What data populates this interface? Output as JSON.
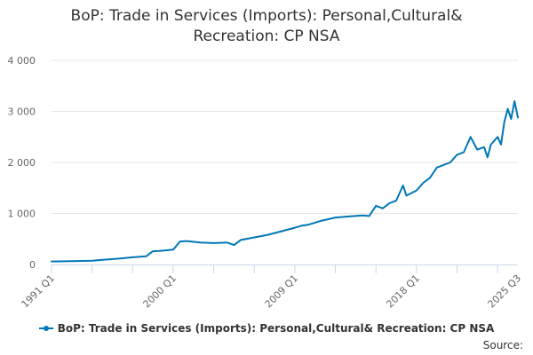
{
  "chart_data": {
    "type": "line",
    "title_lines": [
      "BoP: Trade in Services (Imports): Personal,Cultural&",
      "Recreation: CP NSA"
    ],
    "x_tick_labels": [
      "1991 Q1",
      "2000 Q1",
      "2009 Q1",
      "2018 Q1",
      "2025 Q3"
    ],
    "y_tick_labels": [
      "0",
      "1 000",
      "2 000",
      "3 000",
      "4 000"
    ],
    "ylim": [
      0,
      4000
    ],
    "grid": true,
    "legend_position": "bottom",
    "x_start": "1991 Q1",
    "series": [
      {
        "name": "BoP: Trade in Services (Imports): Personal,Cultural& Recreation: CP NSA",
        "color": "#0077b6",
        "points": [
          [
            "1991 Q1",
            60
          ],
          [
            "1992 Q1",
            62
          ],
          [
            "1993 Q1",
            68
          ],
          [
            "1994 Q1",
            75
          ],
          [
            "1995 Q1",
            95
          ],
          [
            "1996 Q1",
            115
          ],
          [
            "1997 Q1",
            140
          ],
          [
            "1998 Q1",
            160
          ],
          [
            "1998 Q3",
            260
          ],
          [
            "1999 Q1",
            265
          ],
          [
            "2000 Q1",
            290
          ],
          [
            "2000 Q3",
            450
          ],
          [
            "2001 Q1",
            460
          ],
          [
            "2002 Q1",
            430
          ],
          [
            "2003 Q1",
            420
          ],
          [
            "2004 Q1",
            430
          ],
          [
            "2004 Q3",
            380
          ],
          [
            "2005 Q1",
            480
          ],
          [
            "2006 Q1",
            530
          ],
          [
            "2007 Q1",
            580
          ],
          [
            "2008 Q1",
            650
          ],
          [
            "2009 Q1",
            720
          ],
          [
            "2009 Q3",
            760
          ],
          [
            "2010 Q1",
            780
          ],
          [
            "2011 Q1",
            860
          ],
          [
            "2012 Q1",
            920
          ],
          [
            "2013 Q1",
            940
          ],
          [
            "2014 Q1",
            960
          ],
          [
            "2014 Q3",
            950
          ],
          [
            "2015 Q1",
            1150
          ],
          [
            "2015 Q3",
            1100
          ],
          [
            "2016 Q1",
            1200
          ],
          [
            "2016 Q3",
            1250
          ],
          [
            "2017 Q1",
            1550
          ],
          [
            "2017 Q2",
            1350
          ],
          [
            "2018 Q1",
            1450
          ],
          [
            "2018 Q3",
            1600
          ],
          [
            "2019 Q1",
            1700
          ],
          [
            "2019 Q3",
            1900
          ],
          [
            "2020 Q1",
            1950
          ],
          [
            "2020 Q3",
            2000
          ],
          [
            "2021 Q1",
            2150
          ],
          [
            "2021 Q3",
            2200
          ],
          [
            "2022 Q1",
            2500
          ],
          [
            "2022 Q3",
            2250
          ],
          [
            "2023 Q1",
            2300
          ],
          [
            "2023 Q2",
            2100
          ],
          [
            "2023 Q3",
            2350
          ],
          [
            "2024 Q1",
            2500
          ],
          [
            "2024 Q2",
            2350
          ],
          [
            "2024 Q3",
            2800
          ],
          [
            "2024 Q4",
            3050
          ],
          [
            "2025 Q1",
            2850
          ],
          [
            "2025 Q2",
            3200
          ],
          [
            "2025 Q3",
            2880
          ]
        ]
      }
    ]
  },
  "legend_label": "BoP: Trade in Services (Imports): Personal,Cultural& Recreation: CP NSA",
  "source_label": "Source:"
}
